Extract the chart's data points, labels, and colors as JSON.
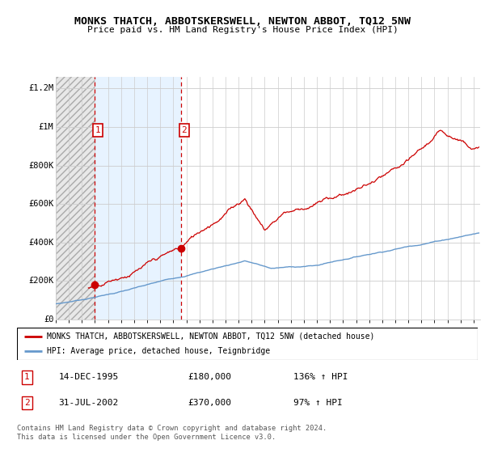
{
  "title": "MONKS THATCH, ABBOTSKERSWELL, NEWTON ABBOT, TQ12 5NW",
  "subtitle": "Price paid vs. HM Land Registry's House Price Index (HPI)",
  "ylabel_ticks": [
    "£0",
    "£200K",
    "£400K",
    "£600K",
    "£800K",
    "£1M",
    "£1.2M"
  ],
  "ytick_vals": [
    0,
    200000,
    400000,
    600000,
    800000,
    1000000,
    1200000
  ],
  "ylim": [
    0,
    1260000
  ],
  "xlim_start": 1993.0,
  "xlim_end": 2025.5,
  "hatch_color": "#bbbbbb",
  "grid_color": "#cccccc",
  "bg_color": "#ffffff",
  "red_line_color": "#cc0000",
  "blue_line_color": "#6699cc",
  "point1_x": 1995.96,
  "point1_y": 180000,
  "point2_x": 2002.58,
  "point2_y": 370000,
  "legend_line1": "MONKS THATCH, ABBOTSKERSWELL, NEWTON ABBOT, TQ12 5NW (detached house)",
  "legend_line2": "HPI: Average price, detached house, Teignbridge",
  "point1_date": "14-DEC-1995",
  "point1_price": "£180,000",
  "point1_hpi": "136% ↑ HPI",
  "point2_date": "31-JUL-2002",
  "point2_price": "£370,000",
  "point2_hpi": "97% ↑ HPI",
  "footer": "Contains HM Land Registry data © Crown copyright and database right 2024.\nThis data is licensed under the Open Government Licence v3.0.",
  "xtick_years": [
    1993,
    1994,
    1995,
    1996,
    1997,
    1998,
    1999,
    2000,
    2001,
    2002,
    2003,
    2004,
    2005,
    2006,
    2007,
    2008,
    2009,
    2010,
    2011,
    2012,
    2013,
    2014,
    2015,
    2016,
    2017,
    2018,
    2019,
    2020,
    2021,
    2022,
    2023,
    2024,
    2025
  ],
  "hatch_end_x": 1995.96,
  "blue_fill_x1": 1995.96,
  "blue_fill_x2": 2002.58
}
